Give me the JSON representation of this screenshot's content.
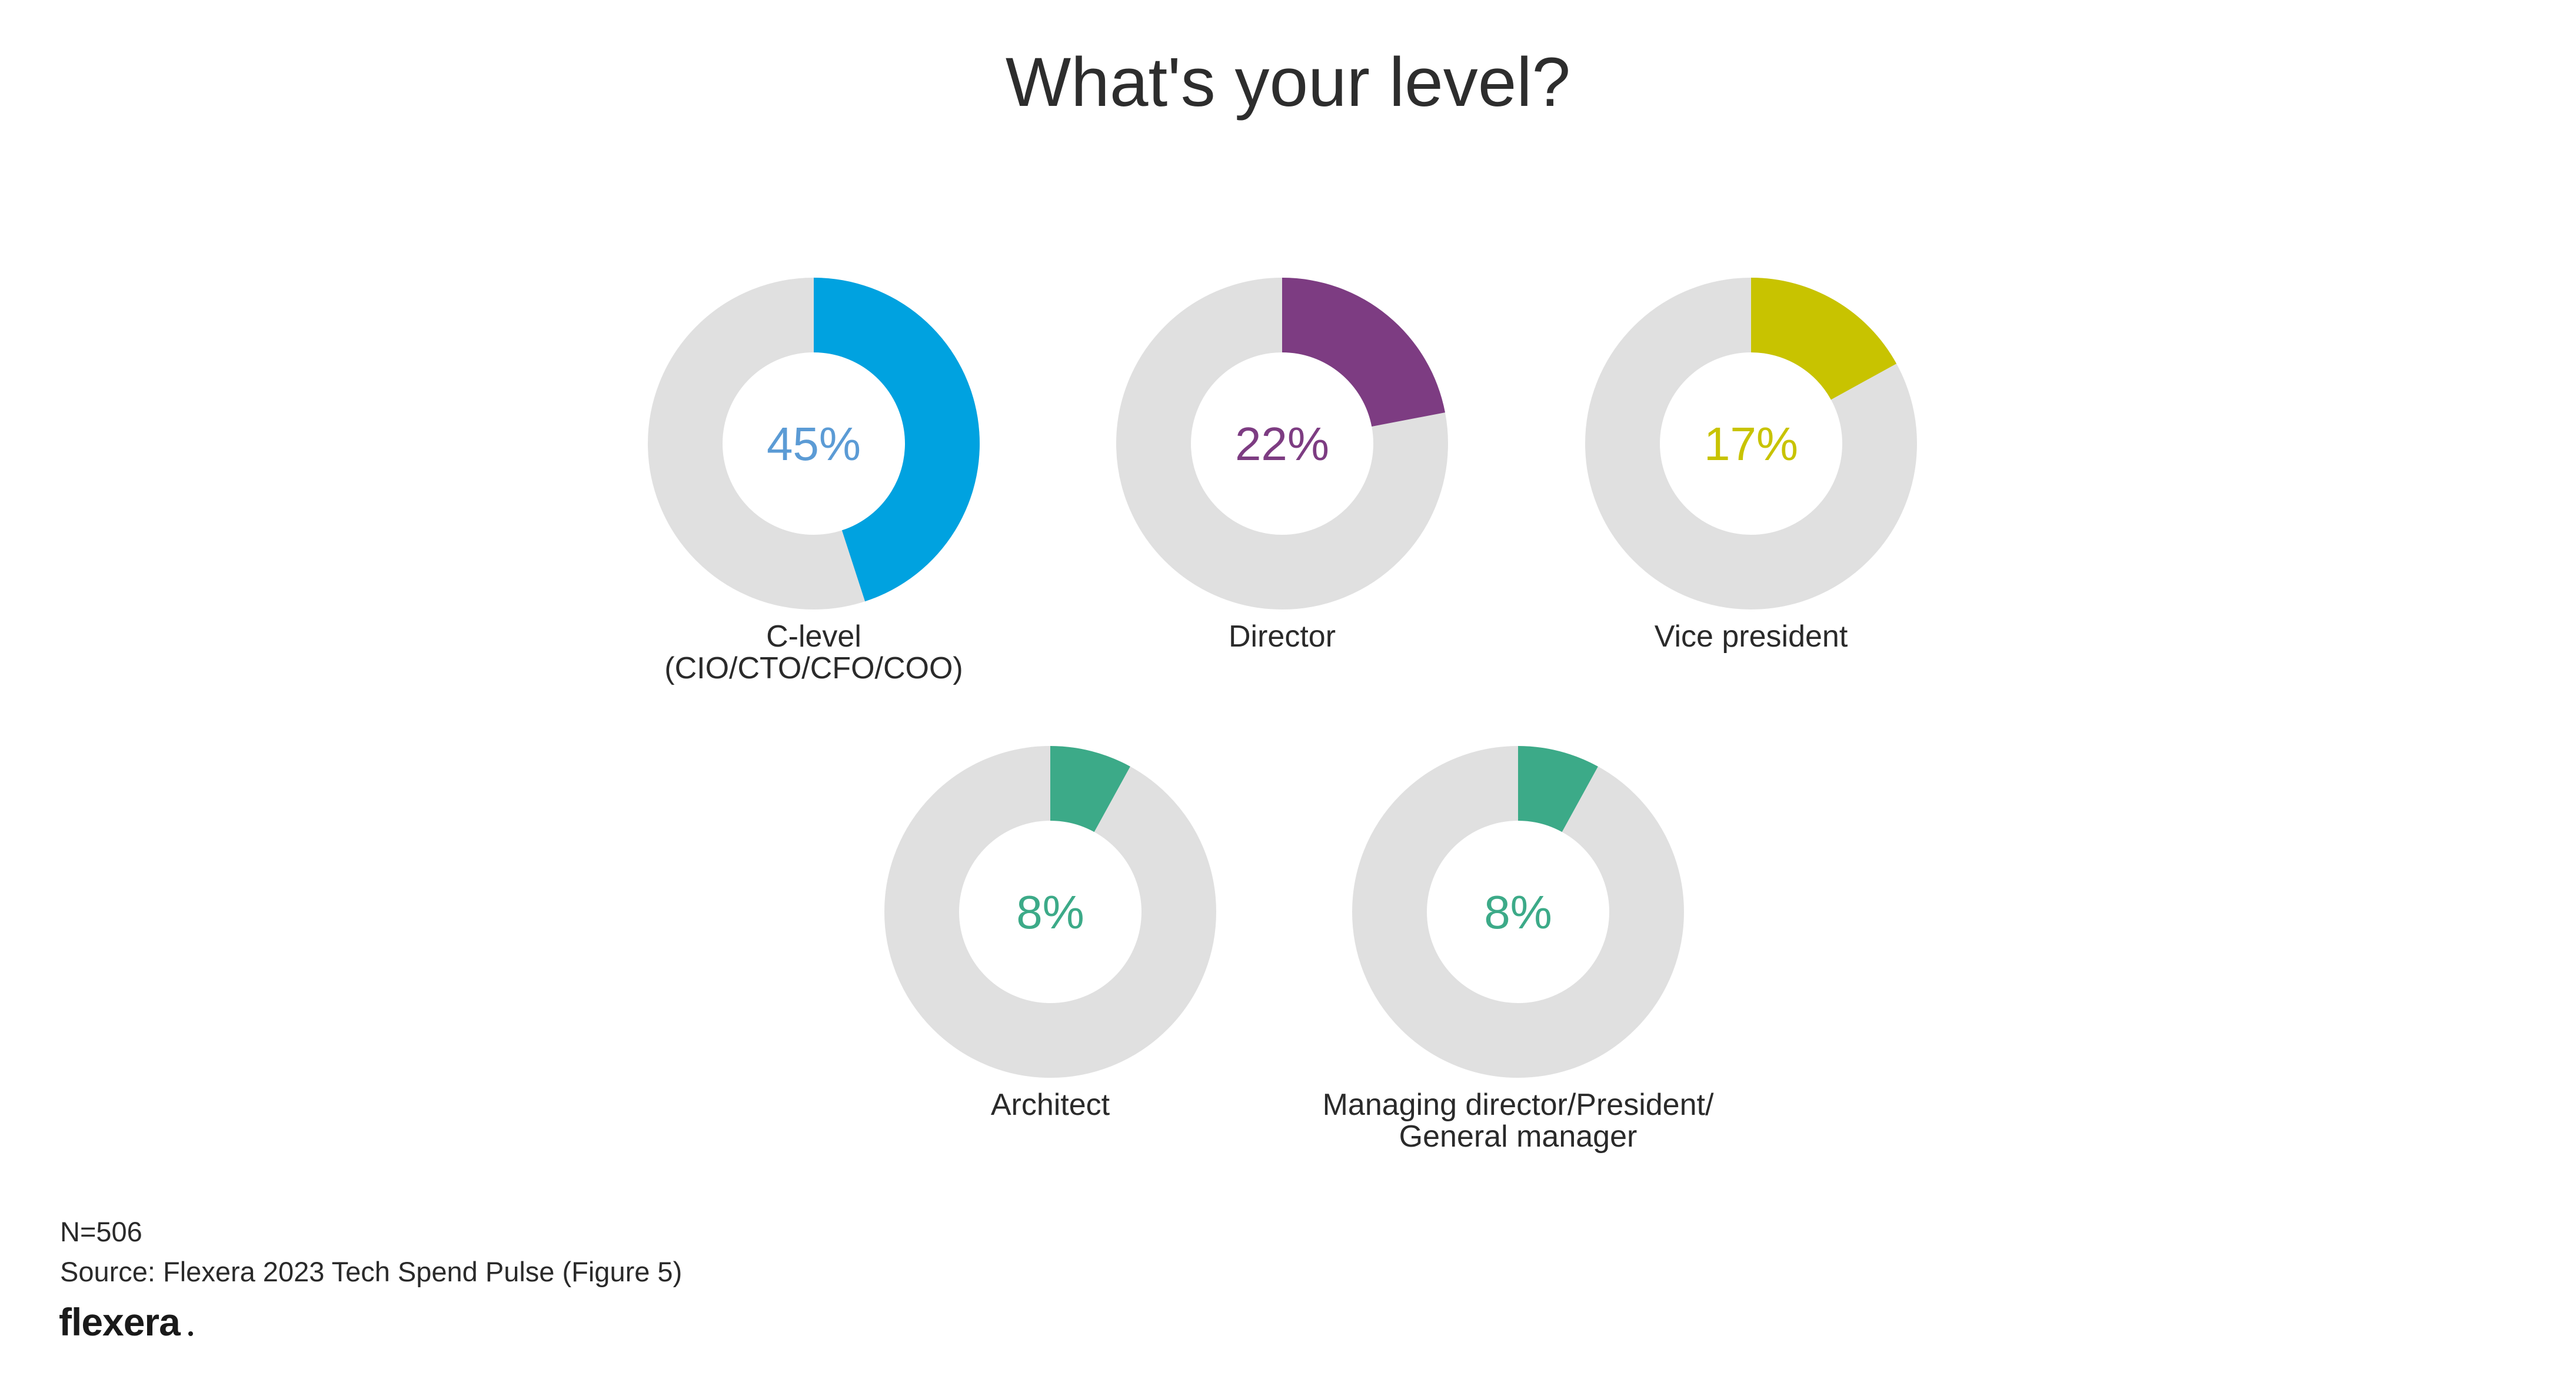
{
  "chart_data": {
    "type": "pie",
    "title": "What's your level?",
    "track_color": "#e0e0e0",
    "donuts": [
      {
        "label_lines": [
          "C-level",
          "(CIO/CTO/CFO/COO)"
        ],
        "value": 45,
        "value_label": "45%",
        "color": "#00a2e0",
        "text_color": "#5b9bd5"
      },
      {
        "label_lines": [
          "Director"
        ],
        "value": 22,
        "value_label": "22%",
        "color": "#7d3c82",
        "text_color": "#7d3c82"
      },
      {
        "label_lines": [
          "Vice president"
        ],
        "value": 17,
        "value_label": "17%",
        "color": "#c8c300",
        "text_color": "#c8c300"
      },
      {
        "label_lines": [
          "Architect"
        ],
        "value": 8,
        "value_label": "8%",
        "color": "#3caa88",
        "text_color": "#3caa88"
      },
      {
        "label_lines": [
          "Managing director/President/",
          "General manager"
        ],
        "value": 8,
        "value_label": "8%",
        "color": "#3caa88",
        "text_color": "#3caa88"
      }
    ]
  },
  "footer": {
    "sample_size": "N=506",
    "source": "Source: Flexera 2023 Tech Spend Pulse (Figure 5)",
    "logo_text": "flexera"
  }
}
